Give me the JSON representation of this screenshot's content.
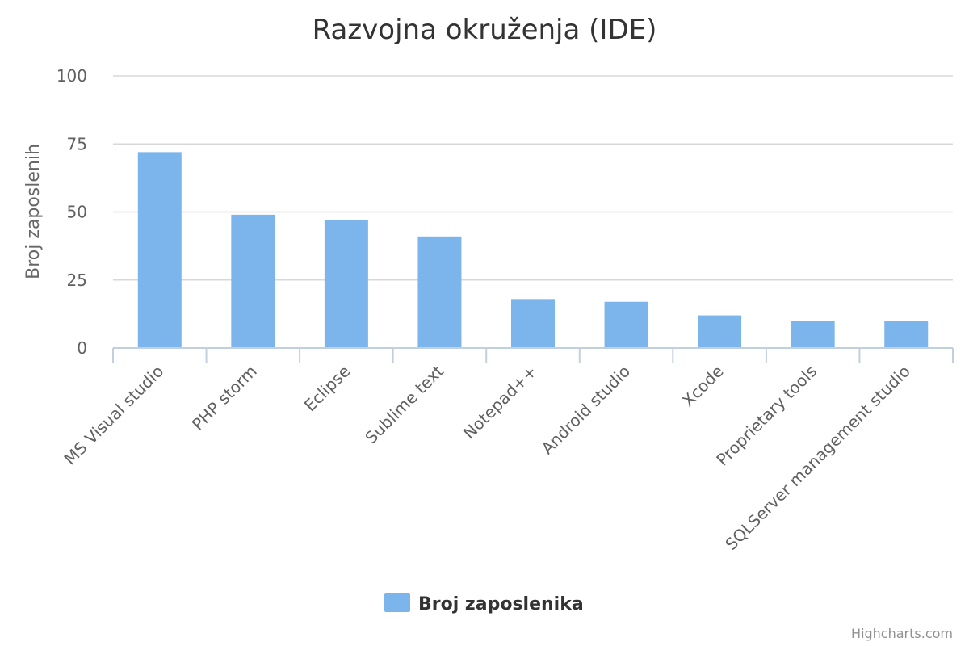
{
  "chart_data": {
    "type": "bar",
    "title": "Razvojna okruženja (IDE)",
    "ylabel": "Broj zaposlenih",
    "xlabel": "",
    "ylim": [
      0,
      100
    ],
    "yticks": [
      0,
      25,
      50,
      75,
      100
    ],
    "categories": [
      "MS Visual studio",
      "PHP storm",
      "Eclipse",
      "Sublime text",
      "Notepad++",
      "Android studio",
      "Xcode",
      "Proprietary tools",
      "SQLServer management studio"
    ],
    "series": [
      {
        "name": "Broj zaposlenika",
        "values": [
          72,
          49,
          47,
          41,
          18,
          17,
          12,
          10,
          10
        ],
        "color": "#7cb5ec"
      }
    ],
    "grid": true,
    "legend_position": "bottom-center"
  },
  "credits": {
    "text": "Highcharts.com"
  }
}
